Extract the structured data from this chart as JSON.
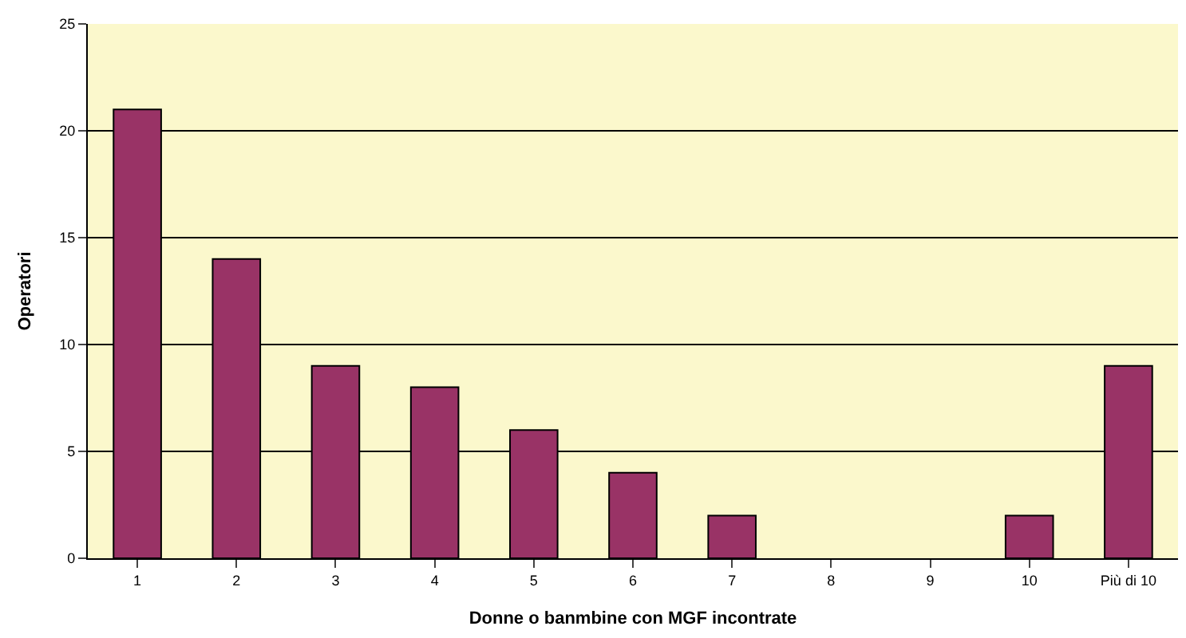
{
  "chart_data": {
    "type": "bar",
    "xlabel": "Donne o banmbine con MGF incontrate",
    "ylabel": "Operatori",
    "categories": [
      "1",
      "2",
      "3",
      "4",
      "5",
      "6",
      "7",
      "8",
      "9",
      "10",
      "Più di 10"
    ],
    "values": [
      21,
      14,
      9,
      8,
      6,
      4,
      2,
      0,
      0,
      2,
      9
    ],
    "color": "#993366",
    "ylim": [
      0,
      25
    ],
    "yticks": [
      0,
      5,
      10,
      15,
      20,
      25
    ],
    "grid": "y",
    "legend": false
  }
}
